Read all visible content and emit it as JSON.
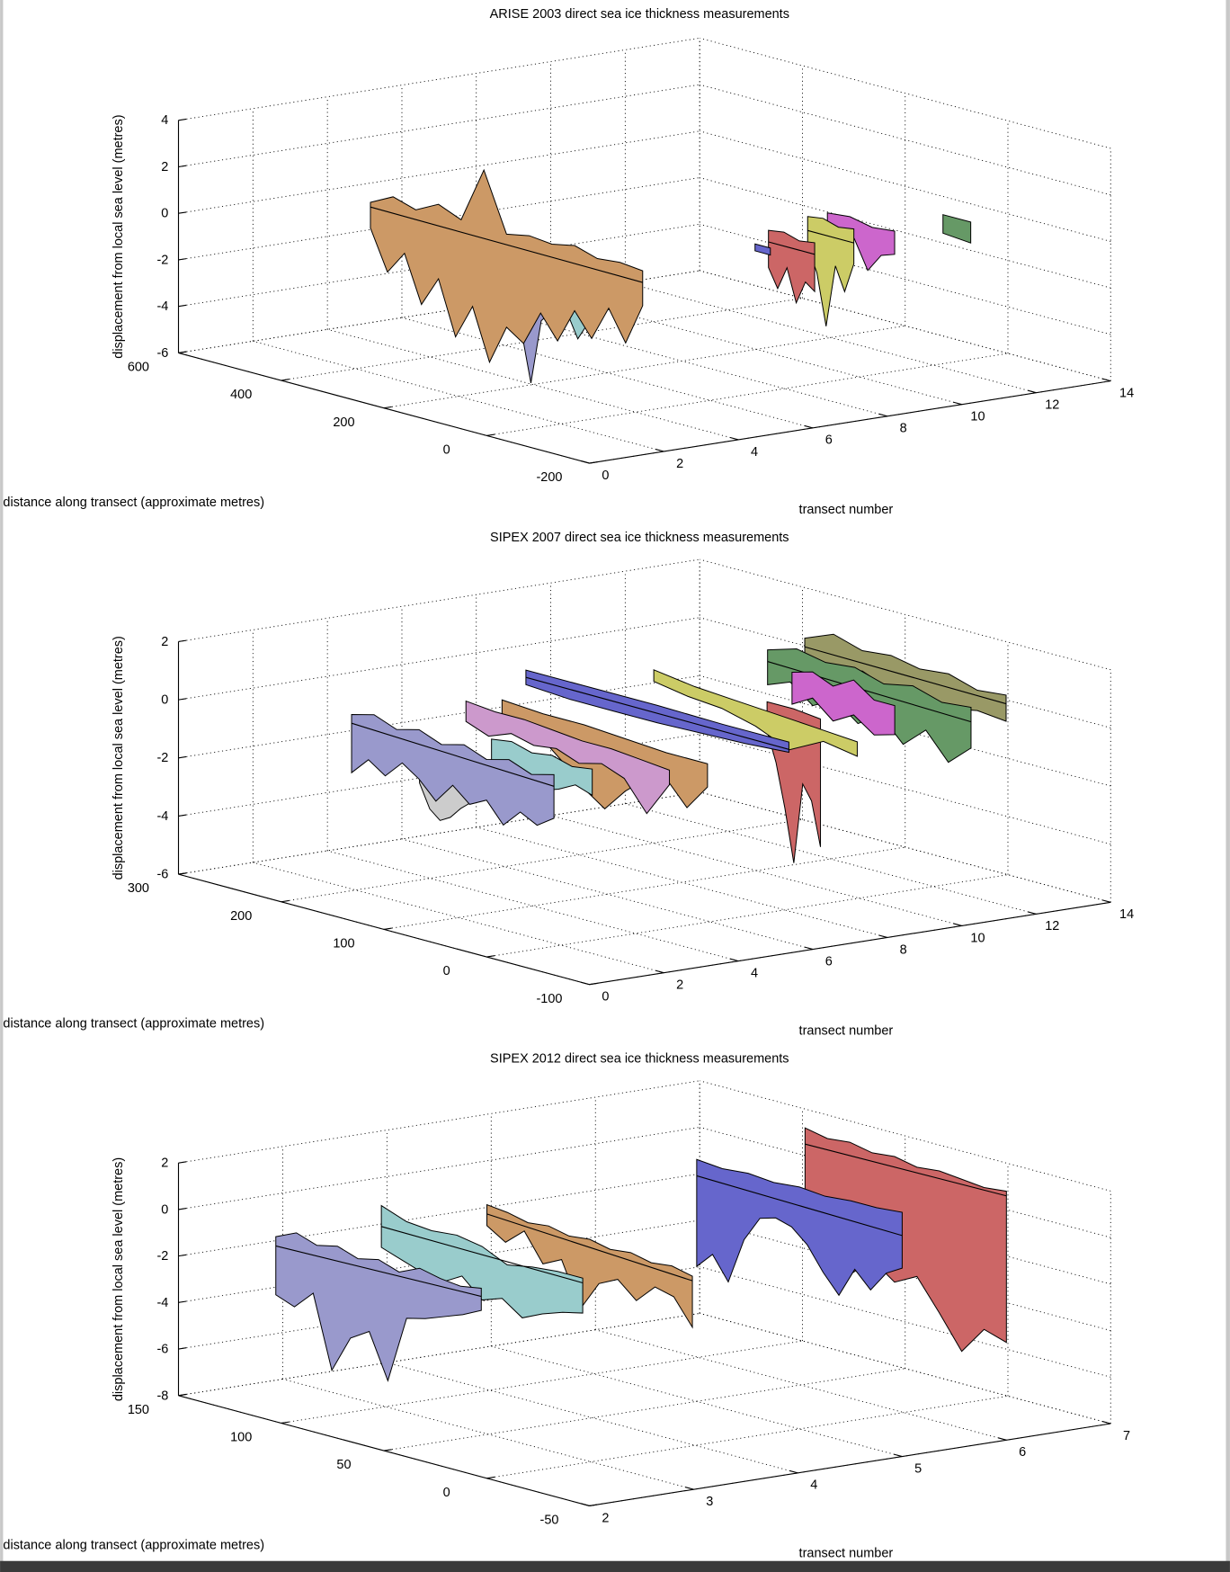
{
  "chart_data": [
    {
      "type": "3d-ribbon",
      "title": "ARISE 2003 direct sea ice thickness measurements",
      "xlabel": "transect number",
      "ylabel": "distance along transect (approximate metres)",
      "zlabel": "displacement from local sea level (metres)",
      "xlim": [
        0,
        14
      ],
      "ylim": [
        -200,
        600
      ],
      "zlim": [
        -6,
        4
      ],
      "xticks": [
        0,
        2,
        4,
        6,
        8,
        10,
        12,
        14
      ],
      "yticks": [
        -200,
        0,
        200,
        400,
        600
      ],
      "zticks": [
        -6,
        -4,
        -2,
        0,
        2,
        4
      ],
      "grid": true,
      "ribbons": [
        {
          "transect": 3.5,
          "distance": [
            480,
            -50
          ],
          "color": "#cc9966",
          "top": [
            0.3,
            0.8,
            0.5,
            1.0,
            0.6,
            3.0,
            0.5,
            0.7,
            0.6,
            0.8,
            0.5,
            0.6,
            0.5
          ],
          "bottom": [
            -0.8,
            -2.5,
            -1.5,
            -3.5,
            -2.2,
            -4.5,
            -3.0,
            -5.2,
            -3.5,
            -4.0,
            -2.5,
            -3.5,
            -2.0,
            -3.0,
            -1.5,
            -2.8,
            -1.0
          ],
          "sea_level_line": [
            0.1,
            0.0
          ]
        },
        {
          "transect": 4,
          "distance": [
            330,
            230
          ],
          "color": "#cccccc",
          "top": [
            -2.5,
            -2.5
          ],
          "bottom": [
            -3.1,
            -3.2,
            -3.0
          ]
        },
        {
          "transect": 4.5,
          "distance": [
            280,
            200
          ],
          "color": "#9999cc",
          "top": [
            -1.5,
            -1.4,
            -1.6,
            -1.5
          ],
          "bottom": [
            -3.0,
            -4.0,
            -6.3,
            -3.5,
            -3.0
          ],
          "sea_level_line": [
            -1.9,
            -1.9
          ]
        },
        {
          "transect": 5,
          "distance": [
            260,
            160
          ],
          "color": "#99cccc",
          "top": [
            -1.3,
            -1.0,
            -1.4,
            -1.1
          ],
          "bottom": [
            -2.8,
            -3.5,
            -3.0,
            -4.2,
            -3.2
          ],
          "sea_level_line": [
            -1.7,
            -1.6
          ]
        },
        {
          "transect": 9,
          "distance": [
            130,
            100
          ],
          "color": "#6666cc",
          "top": [
            -0.8,
            -0.8
          ],
          "bottom": [
            -1.1,
            -1.1
          ]
        },
        {
          "transect": 9.5,
          "distance": [
            140,
            50
          ],
          "color": "#cc6666",
          "top": [
            -0.4,
            -0.3,
            -0.5,
            -0.4
          ],
          "bottom": [
            -2.0,
            -2.8,
            -1.8,
            -3.2,
            -2.2,
            -2.5
          ],
          "sea_level_line": [
            -0.9,
            -0.9
          ]
        },
        {
          "transect": 10,
          "distance": [
            100,
            10
          ],
          "color": "#cccc66",
          "top": [
            0.3,
            0.4,
            0.2,
            0.3
          ],
          "bottom": [
            -1.0,
            -2.0,
            -4.2,
            -1.5,
            -2.5,
            -1.2
          ],
          "sea_level_line": [
            -0.3,
            -0.3
          ]
        },
        {
          "transect": 11,
          "distance": [
            134,
            3
          ],
          "color": "#cc66cc",
          "top": [
            0.0,
            0.1,
            -0.1,
            0.0
          ],
          "bottom": [
            -1.0,
            -1.6,
            -0.8,
            -2.0,
            -1.2,
            -1.0
          ]
        },
        {
          "transect": 13,
          "distance": [
            54,
            0
          ],
          "color": "#669966",
          "top": [
            -0.1,
            -0.1
          ],
          "bottom": [
            -0.9,
            -1.0
          ]
        }
      ]
    },
    {
      "type": "3d-ribbon",
      "title": "SIPEX 2007 direct sea ice thickness measurements",
      "xlabel": "transect number",
      "ylabel": "distance along transect (approximate metres)",
      "zlabel": "displacement from local sea level (metres)",
      "xlim": [
        0,
        14
      ],
      "ylim": [
        -100,
        300
      ],
      "zlim": [
        -6,
        2
      ],
      "xticks": [
        0,
        2,
        4,
        6,
        8,
        10,
        12,
        14
      ],
      "yticks": [
        -100,
        0,
        100,
        200,
        300
      ],
      "zticks": [
        -6,
        -4,
        -2,
        0,
        2
      ],
      "grid": true,
      "ribbons": [
        {
          "transect": 2,
          "distance": [
            204,
            7
          ],
          "color": "#9999cc",
          "top": [
            0.0,
            0.2,
            -0.1,
            0.1,
            -0.2,
            0.0,
            -0.3,
            -0.1,
            -0.4,
            -0.2
          ],
          "bottom": [
            -2.0,
            -1.4,
            -1.8,
            -1.2,
            -1.6,
            -2.2,
            -1.5,
            -2.0,
            -1.7,
            -2.4,
            -1.8,
            -2.1,
            -1.7
          ],
          "sea_level_line": [
            -0.3,
            -0.6
          ]
        },
        {
          "transect": 2.5,
          "distance": [
            156,
            106
          ],
          "color": "#cccccc",
          "top": [
            -1.0,
            -1.0
          ],
          "bottom": [
            -2.0,
            -2.8,
            -3.1,
            -2.9,
            -2.5,
            -2.2
          ]
        },
        {
          "transect": 3,
          "distance": [
            104,
            6
          ],
          "color": "#99cccc",
          "top": [
            -0.1,
            0.0,
            -0.2,
            -0.1,
            -0.3,
            -0.2
          ],
          "bottom": [
            -1.2,
            -1.6,
            -1.0,
            -1.4,
            -1.2,
            -0.9,
            -1.1
          ]
        },
        {
          "transect": 3.5,
          "distance": [
            147,
            -51
          ],
          "color": "#cc99cc",
          "top": [
            0.7,
            0.6,
            0.6,
            0.5,
            0.4,
            0.4,
            0.3,
            0.2
          ],
          "bottom": [
            0.0,
            -0.3,
            0.0,
            -0.2,
            -0.1,
            -0.4,
            -0.2,
            -0.5,
            -1.5,
            -0.3
          ]
        },
        {
          "transect": 4,
          "distance": [
            130,
            -70
          ],
          "color": "#cc9966",
          "top": [
            0.8,
            0.7,
            0.7,
            0.6,
            0.5,
            0.5
          ],
          "bottom": [
            0.2,
            0.0,
            -0.2,
            -0.8,
            -1.5,
            -2.0,
            -1.2,
            -0.6,
            -0.4,
            -1.2,
            -0.3
          ]
        },
        {
          "transect": 5,
          "distance": [
            143,
            -113
          ],
          "color": "#6666cc",
          "top": [
            1.5,
            1.5,
            1.5,
            1.45,
            1.45
          ],
          "bottom": [
            1.0,
            0.9,
            0.9,
            0.9,
            0.95,
            1.0,
            1.1
          ],
          "sea_level_line": [
            1.25,
            1.2
          ]
        },
        {
          "transect": 7,
          "distance": [
            91,
            -107
          ],
          "color": "#cccc66",
          "top": [
            1.6,
            1.4,
            1.3,
            1.2,
            1.1,
            1.0
          ],
          "bottom": [
            1.2,
            1.0,
            0.9,
            0.6,
            0.1,
            0.7,
            0.5
          ]
        },
        {
          "transect": 8,
          "distance": [
            17,
            -35
          ],
          "color": "#cc6666",
          "top": [
            1.0,
            1.0,
            0.9
          ],
          "bottom": [
            0.0,
            -1.0,
            -2.5,
            -4.3,
            -1.5,
            -2.0,
            -3.5
          ]
        },
        {
          "transect": 9,
          "distance": [
            29,
            -71
          ],
          "color": "#cc66cc",
          "top": [
            1.7,
            1.9,
            1.6,
            2.0,
            1.5,
            1.5
          ],
          "bottom": [
            0.6,
            1.0,
            0.4,
            0.8,
            0.3,
            0.5
          ]
        },
        {
          "transect": 10,
          "distance": [
            89,
            -109
          ],
          "color": "#669966",
          "top": [
            1.7,
            2.0,
            1.8,
            1.9,
            1.6,
            1.8,
            1.5,
            1.6
          ],
          "bottom": [
            0.5,
            0.8,
            0.2,
            0.6,
            0.0,
            0.5,
            -0.3,
            0.4,
            -0.5,
            0.2
          ],
          "sea_level_line": [
            1.3,
            1.1
          ]
        },
        {
          "transect": 11,
          "distance": [
            89,
            -107
          ],
          "color": "#999966",
          "top": [
            1.9,
            2.3,
            2.0,
            2.1,
            1.9,
            2.0,
            1.7,
            1.8
          ],
          "bottom": [
            1.2,
            1.0,
            1.3,
            0.9,
            1.1,
            0.8,
            1.0,
            0.9
          ],
          "sea_level_line": [
            1.6,
            1.5
          ]
        }
      ]
    },
    {
      "type": "3d-ribbon",
      "title": "SIPEX 2012 direct sea ice thickness measurements",
      "xlabel": "transect number",
      "ylabel": "distance along transect (approximate metres)",
      "zlabel": "displacement from local sea level (metres)",
      "xlim": [
        2,
        7
      ],
      "ylim": [
        -50,
        150
      ],
      "zlim": [
        -8,
        2
      ],
      "xticks": [
        2,
        3,
        4,
        5,
        6,
        7
      ],
      "yticks": [
        -50,
        0,
        50,
        100,
        150
      ],
      "zticks": [
        -8,
        -6,
        -4,
        -2,
        0,
        2
      ],
      "grid": true,
      "ribbons": [
        {
          "transect": 2.5,
          "distance": [
            128,
            28
          ],
          "color": "#9999cc",
          "top": [
            -1.0,
            -0.6,
            -0.9,
            -0.7,
            -1.0,
            -0.8,
            -1.1,
            -0.7,
            -0.9,
            -1.0,
            -0.85
          ],
          "bottom": [
            -3.5,
            -3.8,
            -3.0,
            -6.1,
            -4.5,
            -4.0,
            -5.9,
            -3.0,
            -2.8,
            -2.5,
            -2.2,
            -1.8
          ],
          "sea_level_line": [
            -1.4,
            -1.2
          ]
        },
        {
          "transect": 3,
          "distance": [
            102,
            4
          ],
          "color": "#99cccc",
          "top": [
            0.6,
            0.2,
            0.1,
            0.2,
            0.0,
            -0.5,
            -0.3,
            -0.2,
            -0.2
          ],
          "bottom": [
            -1.2,
            -1.5,
            -1.8,
            -2.0,
            -1.5,
            -2.3,
            -2.0,
            -2.6,
            -2.2,
            -1.9,
            -1.7
          ],
          "sea_level_line": [
            -0.3,
            -0.4
          ]
        },
        {
          "transect": 3.5,
          "distance": [
            76,
            -24
          ],
          "color": "#cc9966",
          "top": [
            0.9,
            0.8,
            0.6,
            0.7,
            0.5,
            0.6,
            0.4,
            0.5,
            0.3,
            0.4,
            0.2
          ],
          "bottom": [
            0.0,
            -0.5,
            0.2,
            -1.0,
            -0.6,
            -2.5,
            -1.2,
            -0.8,
            -1.5,
            -0.7,
            -0.9,
            -2.0
          ],
          "sea_level_line": [
            0.5,
            0.0
          ]
        },
        {
          "transect": 5,
          "distance": [
            50,
            -50
          ],
          "color": "#6666cc",
          "top": [
            2.4,
            2.3,
            2.4,
            2.3,
            2.4,
            2.3,
            2.4,
            2.4,
            2.5
          ],
          "bottom": [
            -2.2,
            -1.5,
            -2.5,
            -0.5,
            0.6,
            0.8,
            0.6,
            0.0,
            -1.0,
            -1.8,
            -0.5,
            -1.2,
            -0.3,
            0.1
          ],
          "sea_level_line": [
            1.7,
            1.5
          ]
        },
        {
          "transect": 6,
          "distance": [
            48,
            -50
          ],
          "color": "#cc6666",
          "top": [
            3.1,
            2.9,
            3.0,
            2.8,
            2.9,
            2.7,
            2.8,
            2.7,
            2.6,
            2.7
          ],
          "bottom": [
            -1.0,
            -1.5,
            -2.7,
            -1.8,
            -2.5,
            -2.0,
            -3.3,
            -4.7,
            -3.5,
            -3.8
          ],
          "sea_level_line": [
            2.4,
            2.5
          ]
        }
      ]
    }
  ]
}
